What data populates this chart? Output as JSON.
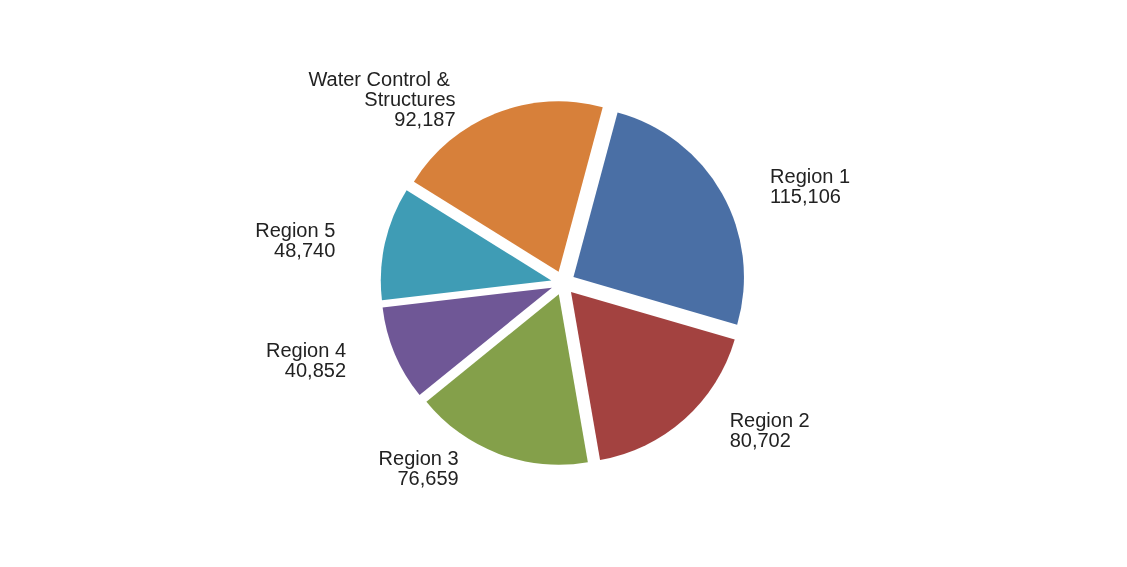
{
  "chart_data": {
    "type": "pie",
    "categories": [
      "Region 1",
      "Region 2",
      "Region 3",
      "Region 4",
      "Region 5",
      "Water Control & Structures"
    ],
    "values": [
      115106,
      80702,
      76659,
      40852,
      48740,
      92187
    ],
    "colors": [
      "#4a6fa5",
      "#a34240",
      "#84a04a",
      "#6f5796",
      "#3f9cb5",
      "#d7803a"
    ],
    "value_labels": [
      "115,106",
      "80,702",
      "76,659",
      "40,852",
      "48,740",
      "92,187"
    ],
    "legend": false
  }
}
